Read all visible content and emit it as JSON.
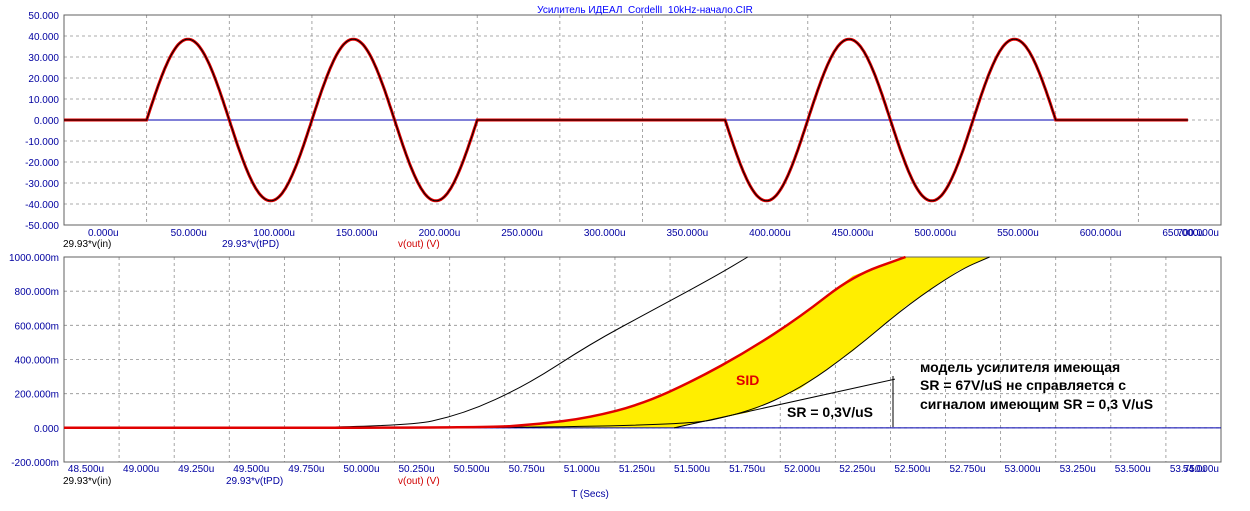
{
  "title": "Усилитель ИДЕАЛ_CordellI_10kHz-начало.CIR",
  "colors": {
    "axis_text": "#0000a0",
    "title": "#0000ff",
    "grid": "#909090",
    "in_trace": "#000000",
    "pd_trace": "#0000b0",
    "out_trace": "#e00000",
    "fill": "#ffee00",
    "legend_in": "#000000",
    "legend_pd": "#0000a0",
    "legend_out": "#d00000"
  },
  "top_panel": {
    "legend": {
      "in": "29.93*v(in)",
      "pd": "29.93*v(tPD)",
      "out": "v(out) (V)"
    },
    "x_ticks": [
      "0.000u",
      "50.000u",
      "100.000u",
      "150.000u",
      "200.000u",
      "250.000u",
      "300.000u",
      "350.000u",
      "400.000u",
      "450.000u",
      "500.000u",
      "550.000u",
      "600.000u",
      "650.000u",
      "700.000u"
    ],
    "y_ticks": [
      "50.000",
      "40.000",
      "30.000",
      "20.000",
      "10.000",
      "0.000",
      "-10.000",
      "-20.000",
      "-30.000",
      "-40.000",
      "-50.000"
    ]
  },
  "bottom_panel": {
    "legend": {
      "in": "29.93*v(in)",
      "pd": "29.93*v(tPD)",
      "out": "v(out) (V)"
    },
    "x_ticks": [
      "48.500u",
      "49.000u",
      "49.250u",
      "49.500u",
      "49.750u",
      "50.000u",
      "50.250u",
      "50.500u",
      "50.750u",
      "51.000u",
      "51.250u",
      "51.500u",
      "51.750u",
      "52.000u",
      "52.250u",
      "52.500u",
      "52.750u",
      "53.000u",
      "53.250u",
      "53.500u",
      "53.750u",
      "54.000u"
    ],
    "y_ticks": [
      "1000.000m",
      "800.000m",
      "600.000m",
      "400.000m",
      "200.000m",
      "0.000",
      "-200.000m"
    ],
    "x_label": "T (Secs)",
    "annotations": {
      "sid": "SID",
      "sr_label": "SR = 0,3V/uS",
      "note_1": "модель усилителя имеющая",
      "note_2": "SR = 67V/uS не справляется с",
      "note_3": "сигналом имеющим SR = 0,3 V/uS"
    }
  },
  "chart_data": [
    {
      "type": "line",
      "title": "Усилитель ИДЕАЛ_CordellI_10kHz-начало.CIR",
      "xlabel": "",
      "ylabel": "",
      "x_unit": "u",
      "xlim": [
        0,
        700
      ],
      "ylim": [
        -50,
        50
      ],
      "grid": true,
      "burst": {
        "amplitude": 38.5,
        "frequency_khz": 10,
        "bursts_us": [
          [
            50,
            250
          ],
          [
            400,
            600
          ]
        ],
        "sweep_end_us": 680
      },
      "series": [
        {
          "name": "29.93*v(in)",
          "x": [
            0,
            50,
            75,
            100,
            125,
            150,
            175,
            200,
            225,
            250,
            300,
            400,
            425,
            450,
            475,
            500,
            525,
            550,
            575,
            600,
            680
          ],
          "y": [
            0,
            0,
            38.5,
            0,
            -38.5,
            0,
            38.5,
            0,
            -38.5,
            0,
            0,
            0,
            -38.5,
            0,
            38.5,
            0,
            -38.5,
            0,
            38.5,
            0,
            0
          ]
        },
        {
          "name": "29.93*v(tPD)",
          "x": [
            0,
            680
          ],
          "y": [
            0,
            0
          ]
        },
        {
          "name": "v(out) (V)",
          "x": [
            0,
            50,
            75,
            100,
            125,
            150,
            175,
            200,
            225,
            250,
            300,
            400,
            425,
            450,
            475,
            500,
            525,
            550,
            575,
            600,
            680
          ],
          "y": [
            0,
            0,
            38.5,
            0,
            -38.5,
            0,
            38.5,
            0,
            -38.5,
            0,
            0,
            0,
            -38.5,
            0,
            38.5,
            0,
            -38.5,
            0,
            38.5,
            0,
            0
          ]
        }
      ]
    },
    {
      "type": "line",
      "title": "",
      "xlabel": "T (Secs)",
      "ylabel": "",
      "x_unit": "u",
      "xlim": [
        48.5,
        54.0
      ],
      "ylim": [
        -200,
        1000
      ],
      "y_unit": "m",
      "grid": true,
      "series": [
        {
          "name": "29.93*v(in)",
          "x": [
            48.5,
            50.1,
            50.4,
            50.7,
            51.0,
            51.3,
            51.6,
            51.75
          ],
          "y": [
            0,
            0,
            80,
            250,
            490,
            690,
            890,
            1000
          ]
        },
        {
          "name": "v(out) (V)",
          "x": [
            48.5,
            50.5,
            50.75,
            51.0,
            51.25,
            51.5,
            51.75,
            52.0,
            52.25,
            52.5
          ],
          "y": [
            0,
            0,
            20,
            60,
            140,
            280,
            450,
            650,
            890,
            1000
          ]
        },
        {
          "name": "29.93*v(tPD)",
          "x": [
            48.5,
            51.4,
            51.75,
            52.0,
            52.25,
            52.5,
            52.75,
            52.9
          ],
          "y": [
            0,
            0,
            90,
            230,
            450,
            710,
            920,
            1000
          ]
        },
        {
          "name": "SR = 0,3V/uS",
          "x": [
            51.4,
            52.45
          ],
          "y": [
            0,
            285
          ]
        }
      ]
    }
  ]
}
